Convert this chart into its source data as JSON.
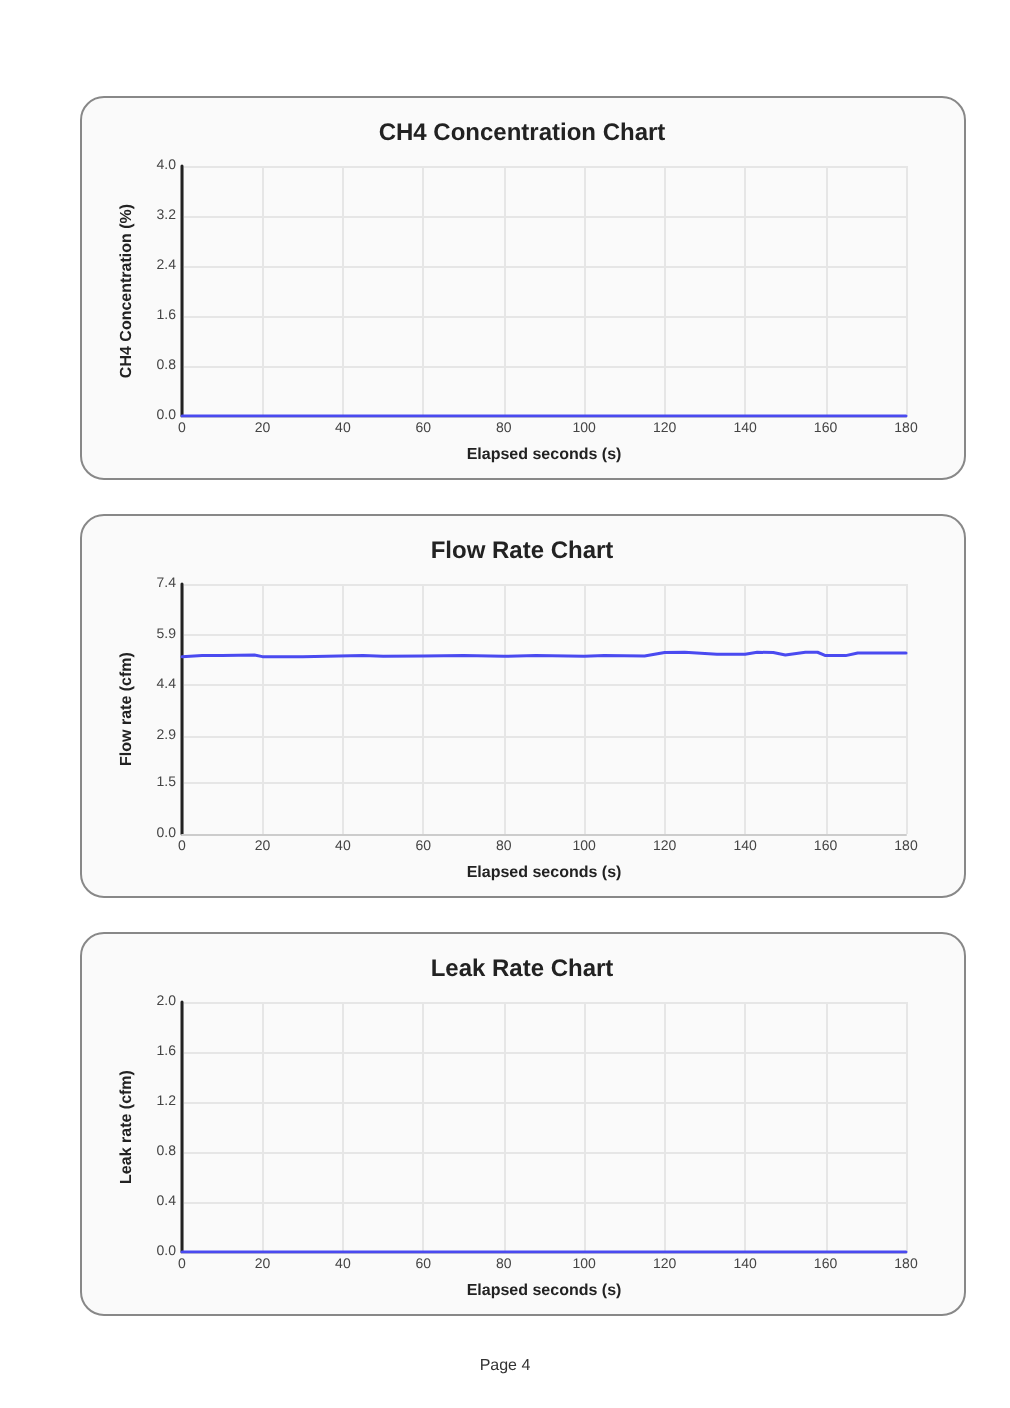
{
  "chart_data": [
    {
      "type": "line",
      "title": "CH4 Concentration Chart",
      "xlabel": "Elapsed seconds (s)",
      "ylabel": "CH4 Concentration (%)",
      "x": [
        0,
        180
      ],
      "series": [
        {
          "color": "#4a4af0",
          "values": [
            0,
            0
          ]
        }
      ],
      "xlim": [
        0,
        180
      ],
      "ylim": [
        0,
        4
      ],
      "xticks": [
        0,
        20,
        40,
        60,
        80,
        100,
        120,
        140,
        160,
        180
      ],
      "yticks": [
        {
          "value": 0,
          "label": "0.0"
        },
        {
          "value": 0.8,
          "label": "0.8"
        },
        {
          "value": 1.6,
          "label": "1.6"
        },
        {
          "value": 2.4,
          "label": "2.4"
        },
        {
          "value": 3.2,
          "label": "3.2"
        },
        {
          "value": 4,
          "label": "4.0"
        }
      ],
      "grid": true,
      "marker": "none",
      "line_style": "solid"
    },
    {
      "type": "line",
      "title": "Flow Rate Chart",
      "xlabel": "Elapsed seconds (s)",
      "ylabel": "Flow rate (cfm)",
      "x": [
        0,
        5,
        10,
        18,
        20,
        30,
        45,
        50,
        60,
        70,
        80,
        88,
        100,
        105,
        115,
        120,
        125,
        133,
        140,
        143,
        147,
        150,
        155,
        158,
        160,
        165,
        168,
        175,
        180
      ],
      "series": [
        {
          "color": "#4a4af0",
          "values": [
            5.25,
            5.28,
            5.28,
            5.3,
            5.25,
            5.25,
            5.28,
            5.26,
            5.27,
            5.28,
            5.26,
            5.28,
            5.26,
            5.28,
            5.27,
            5.37,
            5.38,
            5.32,
            5.32,
            5.38,
            5.37,
            5.3,
            5.38,
            5.38,
            5.28,
            5.28,
            5.36,
            5.36,
            5.36
          ]
        }
      ],
      "xlim": [
        0,
        180
      ],
      "ylim": [
        0,
        7.4
      ],
      "xticks": [
        0,
        20,
        40,
        60,
        80,
        100,
        120,
        140,
        160,
        180
      ],
      "yticks": [
        {
          "value": 0,
          "label": "0.0"
        },
        {
          "value": 1.5,
          "label": "1.5"
        },
        {
          "value": 2.9,
          "label": "2.9"
        },
        {
          "value": 4.4,
          "label": "4.4"
        },
        {
          "value": 5.9,
          "label": "5.9"
        },
        {
          "value": 7.4,
          "label": "7.4"
        }
      ],
      "grid": true,
      "marker": "none",
      "line_style": "solid"
    },
    {
      "type": "line",
      "title": "Leak Rate Chart",
      "xlabel": "Elapsed seconds (s)",
      "ylabel": "Leak rate (cfm)",
      "x": [
        0,
        180
      ],
      "series": [
        {
          "color": "#4a4af0",
          "values": [
            0,
            0
          ]
        }
      ],
      "xlim": [
        0,
        180
      ],
      "ylim": [
        0,
        2
      ],
      "xticks": [
        0,
        20,
        40,
        60,
        80,
        100,
        120,
        140,
        160,
        180
      ],
      "yticks": [
        {
          "value": 0,
          "label": "0.0"
        },
        {
          "value": 0.4,
          "label": "0.4"
        },
        {
          "value": 0.8,
          "label": "0.8"
        },
        {
          "value": 1.2,
          "label": "1.2"
        },
        {
          "value": 1.6,
          "label": "1.6"
        },
        {
          "value": 2,
          "label": "2.0"
        }
      ],
      "grid": true,
      "marker": "none",
      "line_style": "solid",
      "annotations": [
        "Page 4"
      ]
    }
  ]
}
